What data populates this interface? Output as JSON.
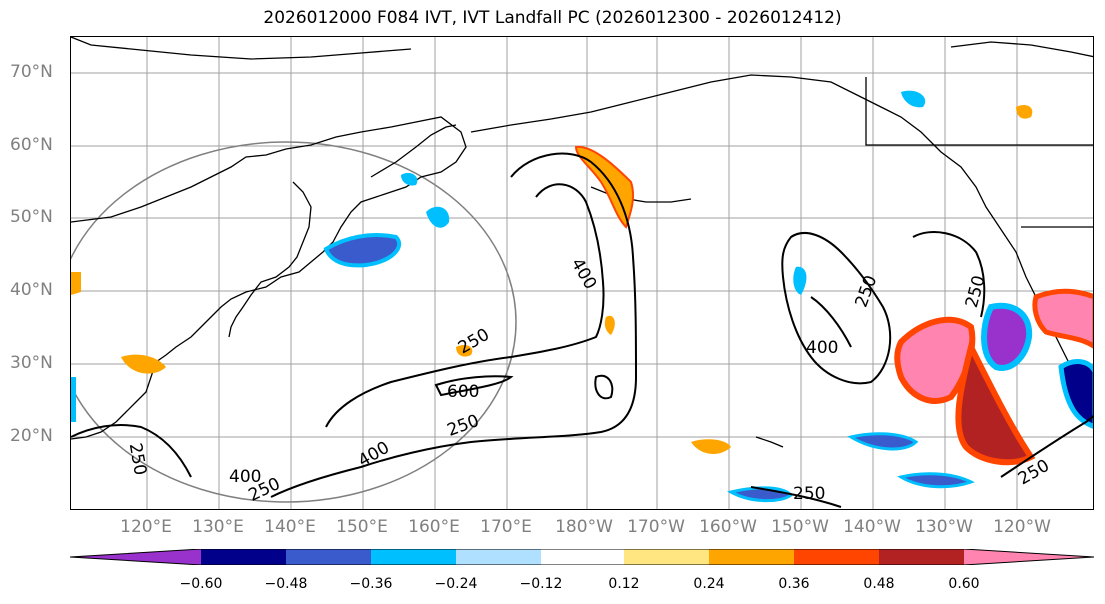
{
  "title": "2026012000 F084 IVT, IVT Landfall PC (2026012300 - 2026012412)",
  "map": {
    "lat_labels": [
      "70°N",
      "60°N",
      "50°N",
      "40°N",
      "30°N",
      "20°N"
    ],
    "lon_labels": [
      "120°E",
      "130°E",
      "140°E",
      "150°E",
      "160°E",
      "170°E",
      "180°W",
      "170°W",
      "160°W",
      "150°W",
      "140°W",
      "130°W",
      "120°W"
    ],
    "contour_labels": [
      "400",
      "250",
      "250",
      "400",
      "600",
      "250",
      "400",
      "250",
      "250",
      "400",
      "250",
      "250",
      "250"
    ],
    "colors": {
      "ocean": "#ffffff",
      "coast": "#000000",
      "grid": "#a0a0a0",
      "contour": "#000000"
    }
  },
  "colorbar": {
    "colors": [
      "#9932cc",
      "#00008b",
      "#3a5bcc",
      "#00bfff",
      "#b0e0ff",
      "#ffffff",
      "#ffe680",
      "#ffa500",
      "#ff4500",
      "#b22222",
      "#ff85b0"
    ],
    "tick_labels": [
      "−0.60",
      "−0.48",
      "−0.36",
      "−0.24",
      "−0.12",
      "0.12",
      "0.24",
      "0.36",
      "0.48",
      "0.60"
    ]
  }
}
